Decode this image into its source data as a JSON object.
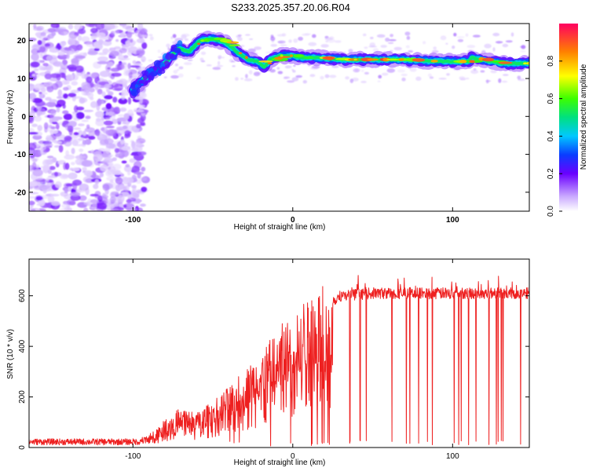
{
  "title": "S233.2025.357.20.06.R04",
  "chart_data": [
    {
      "type": "heatmap",
      "xlabel": "Height of straight line (km)",
      "ylabel": "Frequency (Hz)",
      "xlim": [
        -165,
        148
      ],
      "ylim": [
        -25,
        24.5
      ],
      "x_ticks": [
        -100,
        0,
        100
      ],
      "y_ticks": [
        -20,
        -10,
        0,
        10,
        20
      ],
      "ridge": {
        "x": [
          -100,
          -90,
          -80,
          -72,
          -65,
          -58,
          -50,
          -42,
          -35,
          -28,
          -22,
          -18,
          -14,
          -8,
          0,
          5,
          15,
          30,
          50,
          70,
          90,
          110,
          112,
          130,
          148
        ],
        "freq": [
          7,
          11,
          14,
          18,
          17,
          20,
          20.5,
          19.5,
          17,
          15,
          14.5,
          13,
          15,
          16,
          16,
          15.5,
          15.5,
          15,
          15,
          15,
          14.5,
          14.5,
          15.5,
          14,
          14
        ]
      },
      "colorbar": {
        "label": "Normalized spectral amplitude",
        "range": [
          0,
          1
        ],
        "ticks": [
          "0.0",
          "0.2",
          "0.4",
          "0.6",
          "0.8"
        ],
        "tick_values": [
          0.0,
          0.2,
          0.4,
          0.6,
          0.8
        ]
      }
    },
    {
      "type": "line",
      "xlabel": "Height of straight line (km)",
      "ylabel": "SNR (10 * v/v)",
      "xlim": [
        -165,
        148
      ],
      "ylim": [
        0,
        745
      ],
      "x_ticks": [
        -100,
        0,
        100
      ],
      "y_ticks": [
        0,
        200,
        400,
        600
      ],
      "series": [
        {
          "name": "SNR",
          "color": "#ee2020",
          "envelope_x": [
            -165,
            -110,
            -100,
            -90,
            -80,
            -70,
            -60,
            -50,
            -40,
            -30,
            -20,
            -10,
            0,
            10,
            20,
            25,
            30,
            40,
            50,
            148
          ],
          "envelope_y": [
            20,
            20,
            25,
            45,
            95,
            140,
            120,
            160,
            210,
            270,
            330,
            400,
            480,
            530,
            560,
            580,
            600,
            605,
            610,
            610
          ]
        }
      ]
    }
  ]
}
